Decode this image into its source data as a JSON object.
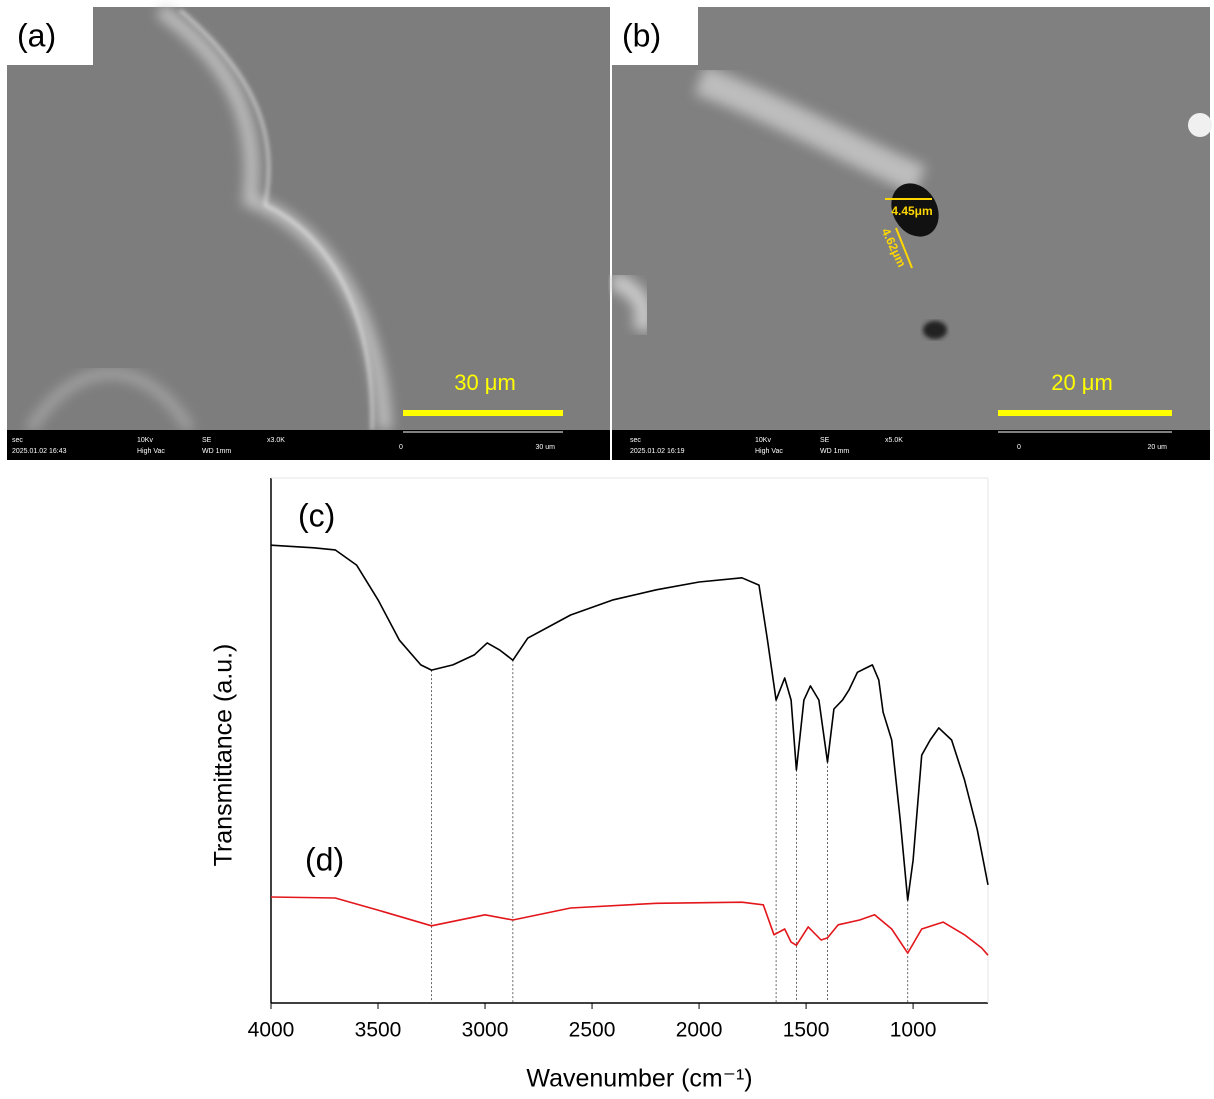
{
  "images": [
    {
      "label": "(a)",
      "scale_bar": "30 μm",
      "info": [
        "sec",
        "2025.01.02 16:43",
        "10Kv",
        "High Vac",
        "SE",
        "WD 1mm",
        "x3.0K",
        "0",
        "30 um"
      ]
    },
    {
      "label": "(b)",
      "scale_bar": "20 μm",
      "measurements": [
        "4.45μm",
        "4.62μm"
      ],
      "info": [
        "sec",
        "2025.01.02 16:19",
        "10Kv",
        "High Vac",
        "SE",
        "WD 1mm",
        "x5.0K",
        "0",
        "20 um"
      ]
    }
  ],
  "chart_data": {
    "type": "line",
    "xlabel": "Wavenumber (cm⁻¹)",
    "ylabel": "Transmittance (a.u.)",
    "xlim": [
      4000,
      650
    ],
    "xticks": [
      4000,
      3500,
      3000,
      2500,
      2000,
      1500,
      1000
    ],
    "ylim": [
      0,
      100
    ],
    "reference_lines": [
      3250,
      2870,
      1640,
      1545,
      1400,
      1025
    ],
    "series": [
      {
        "name": "(c)",
        "color": "#000000",
        "x": [
          4000,
          3800,
          3700,
          3600,
          3500,
          3400,
          3300,
          3250,
          3150,
          3050,
          2990,
          2930,
          2870,
          2800,
          2600,
          2400,
          2200,
          2000,
          1800,
          1720,
          1680,
          1640,
          1600,
          1570,
          1545,
          1510,
          1480,
          1440,
          1400,
          1370,
          1330,
          1300,
          1260,
          1220,
          1190,
          1160,
          1140,
          1100,
          1060,
          1025,
          1000,
          960,
          920,
          880,
          820,
          760,
          700,
          650
        ],
        "values": [
          87.2,
          86.7,
          86.3,
          83.4,
          76.8,
          69.1,
          64.4,
          63.4,
          64.4,
          66.3,
          68.6,
          67.2,
          65.3,
          69.5,
          73.9,
          76.8,
          78.7,
          80.2,
          81.0,
          79.6,
          69.1,
          57.7,
          61.9,
          57.7,
          44.4,
          57.7,
          60.4,
          57.7,
          45.9,
          56.0,
          57.7,
          59.6,
          63.0,
          63.8,
          64.4,
          61.5,
          55.4,
          50.1,
          34.9,
          19.6,
          27.2,
          47.2,
          50.1,
          52.4,
          50.1,
          42.5,
          33.0,
          22.5
        ]
      },
      {
        "name": "(d)",
        "color": "#e3161b",
        "x": [
          4000,
          3700,
          3500,
          3250,
          3000,
          2870,
          2600,
          2200,
          1800,
          1700,
          1650,
          1600,
          1570,
          1545,
          1490,
          1430,
          1400,
          1350,
          1250,
          1180,
          1100,
          1025,
          960,
          860,
          760,
          680,
          650
        ],
        "values": [
          20.2,
          20.0,
          17.7,
          14.7,
          16.8,
          15.8,
          18.1,
          19.0,
          19.2,
          18.7,
          13.0,
          14.1,
          11.6,
          11.0,
          14.5,
          12.0,
          12.4,
          14.9,
          15.8,
          16.8,
          14.1,
          9.5,
          14.1,
          15.4,
          13.0,
          10.5,
          9.1
        ]
      }
    ]
  }
}
